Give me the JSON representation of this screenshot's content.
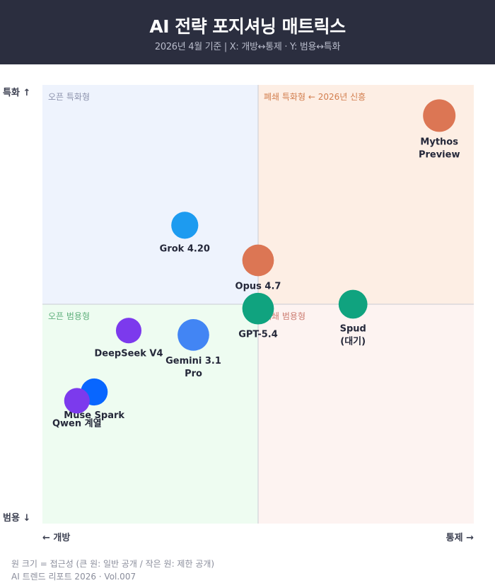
{
  "header": {
    "title": "AI 전략 포지셔닝 매트릭스",
    "subtitle": "2026년 4월 기준 | X: 개방↔통제 · Y: 범용↔특화"
  },
  "chart_data": {
    "type": "scatter",
    "title": "AI 전략 포지셔닝 매트릭스",
    "subtitle": "2026년 4월 기준 | X: 개방↔통제 · Y: 범용↔특화",
    "xlabel_min": "← 개방",
    "xlabel_max": "통제 →",
    "ylabel_max": "특화 ↑",
    "ylabel_min": "범용 ↓",
    "xlim": [
      0,
      100
    ],
    "ylim": [
      0,
      100
    ],
    "grid": false,
    "quadrants": [
      {
        "id": "top-left",
        "label": "오픈 특화형",
        "fill": "#eef3fd",
        "text_color": "#8d93ad"
      },
      {
        "id": "top-right",
        "label": "폐쇄 특화형 ← 2026년 신흥",
        "fill": "#fdeee4",
        "text_color": "#d27e4e"
      },
      {
        "id": "bottom-left",
        "label": "오픈 범용형",
        "fill": "#eefcf1",
        "text_color": "#5fb07c"
      },
      {
        "id": "bottom-right",
        "label": "폐쇄 범용형",
        "fill": "#fdf3f1",
        "text_color": "#cc7d72"
      }
    ],
    "points": [
      {
        "label": [
          "Mythos",
          "Preview"
        ],
        "x": 92,
        "y": 93,
        "size": 1.0,
        "color": "#dc7654"
      },
      {
        "label": [
          "Grok 4.20"
        ],
        "x": 33,
        "y": 68,
        "size": 0.7,
        "color": "#1d9bf0"
      },
      {
        "label": [
          "Opus 4.7"
        ],
        "x": 50,
        "y": 60,
        "size": 0.95,
        "color": "#dc7654"
      },
      {
        "label": [
          "GPT-5.4"
        ],
        "x": 50,
        "y": 49,
        "size": 0.95,
        "color": "#10a37f"
      },
      {
        "label": [
          "Spud",
          "(대기)"
        ],
        "x": 72,
        "y": 50,
        "size": 0.8,
        "color": "#10a37f"
      },
      {
        "label": [
          "Gemini 3.1",
          "Pro"
        ],
        "x": 35,
        "y": 43,
        "size": 0.95,
        "color": "#4285f4"
      },
      {
        "label": [
          "DeepSeek V4"
        ],
        "x": 20,
        "y": 44,
        "size": 0.62,
        "color": "#7c3aed"
      },
      {
        "label": [
          "Muse Spark"
        ],
        "x": 12,
        "y": 30,
        "size": 0.7,
        "color": "#0866ff"
      },
      {
        "label": [
          "Qwen 계열"
        ],
        "x": 8,
        "y": 28,
        "size": 0.62,
        "color": "#7c3aed"
      }
    ]
  },
  "footer": {
    "note": "원 크기 = 접근성 (큰 원: 일반 공개 / 작은 원: 제한 공개)",
    "credit": "AI 트렌드 리포트 2026 · Vol.007"
  }
}
